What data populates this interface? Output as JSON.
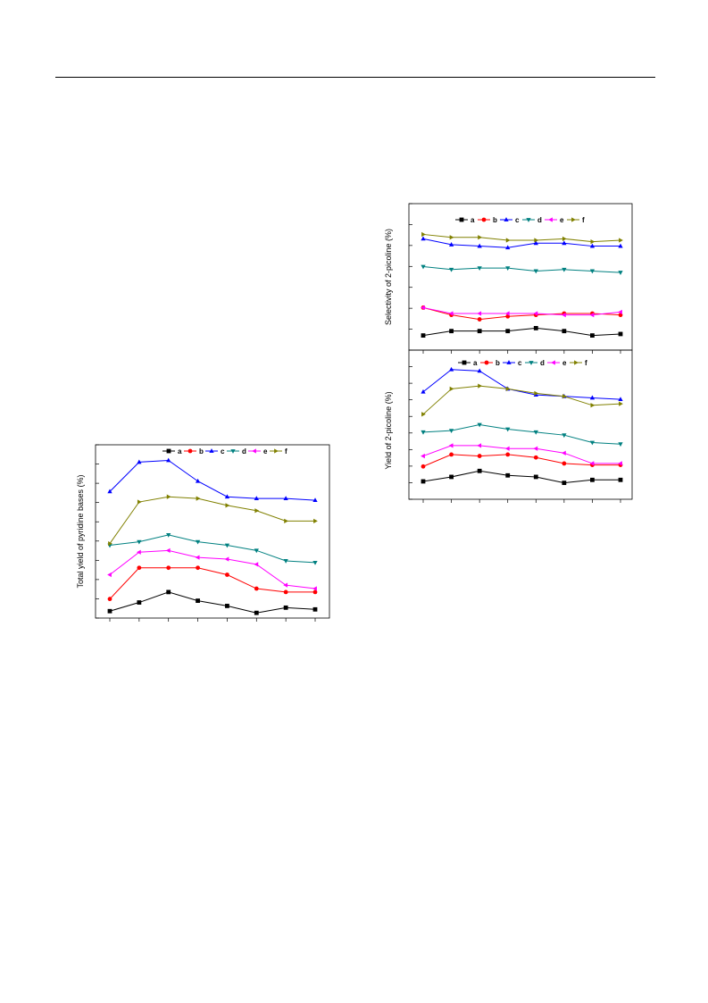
{
  "page": {
    "background": "#ffffff"
  },
  "series_colors": {
    "a": "#000000",
    "b": "#ff0000",
    "c": "#0000ff",
    "d": "#008080",
    "e": "#ff00ff",
    "f": "#808000"
  },
  "series_markers": {
    "a": "square",
    "b": "circle",
    "c": "triangle-up",
    "d": "triangle-down",
    "e": "triangle-left",
    "f": "triangle-right"
  },
  "chart_data": [
    {
      "type": "line",
      "id": "total-yield",
      "title": "",
      "xlabel": "",
      "ylabel": "Total yield of pyridine bases (%)",
      "x": [
        1,
        2,
        3,
        4,
        5,
        6,
        7,
        8
      ],
      "ylim": [
        0,
        100
      ],
      "grid": false,
      "legend": "top-right",
      "series": [
        {
          "name": "a",
          "values": [
            4,
            9,
            15,
            10,
            7,
            3,
            6,
            5
          ]
        },
        {
          "name": "b",
          "values": [
            11,
            29,
            29,
            29,
            25,
            17,
            15,
            15
          ]
        },
        {
          "name": "c",
          "values": [
            73,
            90,
            91,
            79,
            70,
            69,
            69,
            68
          ]
        },
        {
          "name": "d",
          "values": [
            42,
            44,
            48,
            44,
            42,
            39,
            33,
            32
          ]
        },
        {
          "name": "e",
          "values": [
            25,
            38,
            39,
            35,
            34,
            31,
            19,
            17
          ]
        },
        {
          "name": "f",
          "values": [
            43,
            67,
            70,
            69,
            65,
            62,
            56,
            56
          ]
        }
      ]
    },
    {
      "type": "line",
      "id": "selectivity",
      "title": "",
      "xlabel": "",
      "ylabel": "Selectivity of 2-picoline (%)",
      "x": [
        1,
        2,
        3,
        4,
        5,
        6,
        7,
        8
      ],
      "ylim": [
        0,
        100
      ],
      "grid": false,
      "legend": "top-right",
      "series": [
        {
          "name": "a",
          "values": [
            10,
            13,
            13,
            13,
            15,
            13,
            10,
            11
          ]
        },
        {
          "name": "b",
          "values": [
            29,
            24,
            21,
            23,
            24,
            25,
            25,
            24
          ]
        },
        {
          "name": "c",
          "values": [
            76,
            72,
            71,
            70,
            73,
            73,
            71,
            71
          ]
        },
        {
          "name": "d",
          "values": [
            57,
            55,
            56,
            56,
            54,
            55,
            54,
            53
          ]
        },
        {
          "name": "e",
          "values": [
            29,
            25,
            25,
            25,
            25,
            24,
            24,
            26
          ]
        },
        {
          "name": "f",
          "values": [
            79,
            77,
            77,
            75,
            75,
            76,
            74,
            75
          ]
        }
      ]
    },
    {
      "type": "line",
      "id": "yield-2-picoline",
      "title": "",
      "xlabel": "",
      "ylabel": "Yield of 2-picoline (%)",
      "x": [
        1,
        2,
        3,
        4,
        5,
        6,
        7,
        8
      ],
      "ylim": [
        0,
        100
      ],
      "grid": false,
      "legend": "top-right",
      "series": [
        {
          "name": "a",
          "values": [
            12,
            15,
            19,
            16,
            15,
            11,
            13,
            13
          ]
        },
        {
          "name": "b",
          "values": [
            22,
            30,
            29,
            30,
            28,
            24,
            23,
            23
          ]
        },
        {
          "name": "c",
          "values": [
            72,
            87,
            86,
            74,
            70,
            69,
            68,
            67
          ]
        },
        {
          "name": "d",
          "values": [
            45,
            46,
            50,
            47,
            45,
            43,
            38,
            37
          ]
        },
        {
          "name": "e",
          "values": [
            29,
            36,
            36,
            34,
            34,
            31,
            24,
            24
          ]
        },
        {
          "name": "f",
          "values": [
            57,
            74,
            76,
            74,
            71,
            69,
            63,
            64
          ]
        }
      ]
    }
  ]
}
